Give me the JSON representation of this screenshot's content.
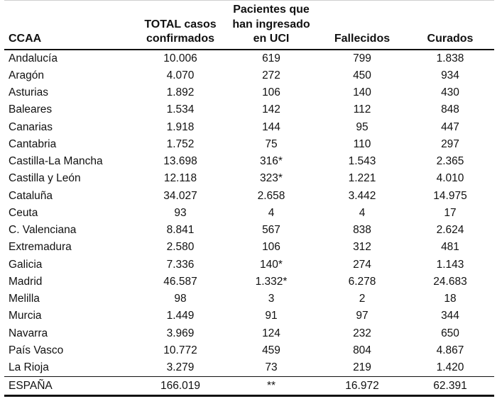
{
  "table": {
    "headers": [
      [
        "CCAA"
      ],
      [
        "TOTAL casos",
        "confirmados"
      ],
      [
        "Pacientes que",
        "han ingresado",
        "en UCI"
      ],
      [
        "Fallecidos"
      ],
      [
        "Curados"
      ]
    ],
    "rows": [
      [
        "Andalucía",
        "10.006",
        "619",
        "799",
        "1.838"
      ],
      [
        "Aragón",
        "4.070",
        "272",
        "450",
        "934"
      ],
      [
        "Asturias",
        "1.892",
        "106",
        "140",
        "430"
      ],
      [
        "Baleares",
        "1.534",
        "142",
        "112",
        "848"
      ],
      [
        "Canarias",
        "1.918",
        "144",
        "95",
        "447"
      ],
      [
        "Cantabria",
        "1.752",
        "75",
        "110",
        "297"
      ],
      [
        "Castilla-La Mancha",
        "13.698",
        "316*",
        "1.543",
        "2.365"
      ],
      [
        "Castilla y León",
        "12.118",
        "323*",
        "1.221",
        "4.010"
      ],
      [
        "Cataluña",
        "34.027",
        "2.658",
        "3.442",
        "14.975"
      ],
      [
        "Ceuta",
        "93",
        "4",
        "4",
        "17"
      ],
      [
        "C. Valenciana",
        "8.841",
        "567",
        "838",
        "2.624"
      ],
      [
        "Extremadura",
        "2.580",
        "106",
        "312",
        "481"
      ],
      [
        "Galicia",
        "7.336",
        "140*",
        "274",
        "1.143"
      ],
      [
        "Madrid",
        "46.587",
        "1.332*",
        "6.278",
        "24.683"
      ],
      [
        "Melilla",
        "98",
        "3",
        "2",
        "18"
      ],
      [
        "Murcia",
        "1.449",
        "91",
        "97",
        "344"
      ],
      [
        "Navarra",
        "3.969",
        "124",
        "232",
        "650"
      ],
      [
        "País Vasco",
        "10.772",
        "459",
        "804",
        "4.867"
      ],
      [
        "La Rioja",
        "3.279",
        "73",
        "219",
        "1.420"
      ]
    ],
    "total_row": [
      "ESPAÑA",
      "166.019",
      "**",
      "16.972",
      "62.391"
    ]
  }
}
